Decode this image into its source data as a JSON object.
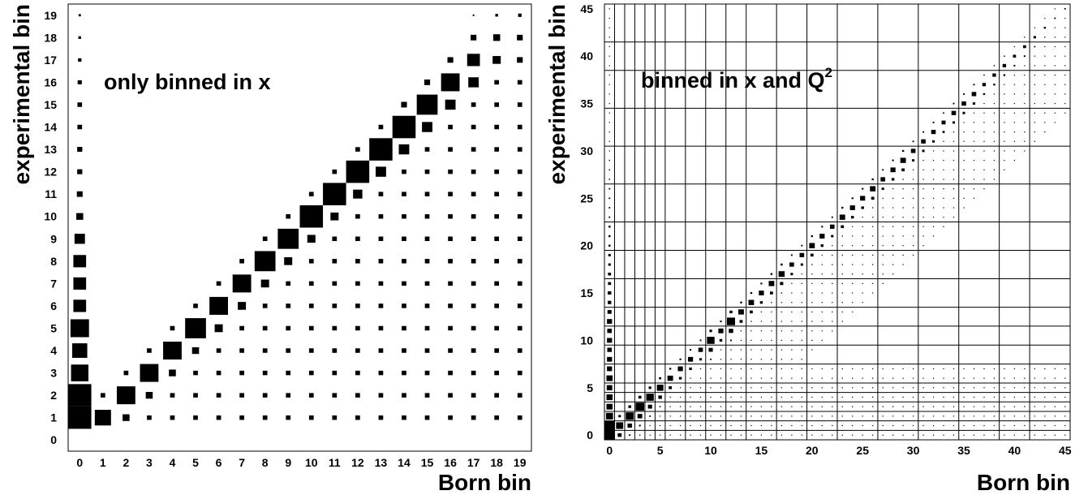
{
  "chart_data": [
    {
      "type": "heatmap",
      "annotation": "only binned in x",
      "xlabel": "Born bin",
      "ylabel": "experimental bin",
      "x_bins": 20,
      "y_bins": 20,
      "xticks": [
        "0",
        "1",
        "2",
        "3",
        "4",
        "5",
        "6",
        "7",
        "8",
        "9",
        "10",
        "11",
        "12",
        "13",
        "14",
        "15",
        "16",
        "17",
        "18",
        "19"
      ],
      "yticks": [
        "0",
        "1",
        "2",
        "3",
        "4",
        "5",
        "6",
        "7",
        "8",
        "9",
        "10",
        "11",
        "12",
        "13",
        "14",
        "15",
        "16",
        "17",
        "18",
        "19"
      ],
      "cells_note": "[born_bin, exp_bin, relative_weight 0-1] (weight = box side fraction)",
      "cells": [
        [
          0,
          1,
          1.0
        ],
        [
          0,
          2,
          1.0
        ],
        [
          0,
          3,
          0.75
        ],
        [
          0,
          4,
          0.65
        ],
        [
          0,
          5,
          0.8
        ],
        [
          0,
          6,
          0.55
        ],
        [
          0,
          7,
          0.55
        ],
        [
          0,
          8,
          0.55
        ],
        [
          0,
          9,
          0.45
        ],
        [
          0,
          10,
          0.3
        ],
        [
          0,
          11,
          0.25
        ],
        [
          0,
          12,
          0.22
        ],
        [
          0,
          13,
          0.22
        ],
        [
          0,
          14,
          0.2
        ],
        [
          0,
          15,
          0.2
        ],
        [
          0,
          16,
          0.18
        ],
        [
          0,
          17,
          0.15
        ],
        [
          0,
          18,
          0.12
        ],
        [
          0,
          19,
          0.1
        ],
        [
          1,
          1,
          0.7
        ],
        [
          1,
          2,
          0.2
        ],
        [
          2,
          1,
          0.3
        ],
        [
          2,
          2,
          0.8
        ],
        [
          2,
          3,
          0.2
        ],
        [
          3,
          1,
          0.2
        ],
        [
          3,
          2,
          0.3
        ],
        [
          3,
          3,
          0.8
        ],
        [
          3,
          4,
          0.2
        ],
        [
          4,
          1,
          0.2
        ],
        [
          4,
          2,
          0.2
        ],
        [
          4,
          3,
          0.3
        ],
        [
          4,
          4,
          0.8
        ],
        [
          4,
          5,
          0.2
        ],
        [
          5,
          1,
          0.2
        ],
        [
          5,
          2,
          0.2
        ],
        [
          5,
          3,
          0.2
        ],
        [
          5,
          4,
          0.3
        ],
        [
          5,
          5,
          0.9
        ],
        [
          5,
          6,
          0.2
        ],
        [
          6,
          1,
          0.2
        ],
        [
          6,
          2,
          0.2
        ],
        [
          6,
          3,
          0.2
        ],
        [
          6,
          4,
          0.2
        ],
        [
          6,
          5,
          0.35
        ],
        [
          6,
          6,
          0.8
        ],
        [
          6,
          7,
          0.2
        ],
        [
          7,
          1,
          0.2
        ],
        [
          7,
          2,
          0.2
        ],
        [
          7,
          3,
          0.2
        ],
        [
          7,
          4,
          0.2
        ],
        [
          7,
          5,
          0.2
        ],
        [
          7,
          6,
          0.35
        ],
        [
          7,
          7,
          0.8
        ],
        [
          7,
          8,
          0.2
        ],
        [
          8,
          1,
          0.2
        ],
        [
          8,
          2,
          0.2
        ],
        [
          8,
          3,
          0.2
        ],
        [
          8,
          4,
          0.2
        ],
        [
          8,
          5,
          0.2
        ],
        [
          8,
          6,
          0.2
        ],
        [
          8,
          7,
          0.35
        ],
        [
          8,
          8,
          0.9
        ],
        [
          8,
          9,
          0.2
        ],
        [
          9,
          1,
          0.2
        ],
        [
          9,
          2,
          0.2
        ],
        [
          9,
          3,
          0.2
        ],
        [
          9,
          4,
          0.2
        ],
        [
          9,
          5,
          0.2
        ],
        [
          9,
          6,
          0.2
        ],
        [
          9,
          7,
          0.2
        ],
        [
          9,
          8,
          0.35
        ],
        [
          9,
          9,
          0.9
        ],
        [
          9,
          10,
          0.2
        ],
        [
          10,
          1,
          0.2
        ],
        [
          10,
          2,
          0.2
        ],
        [
          10,
          3,
          0.2
        ],
        [
          10,
          4,
          0.2
        ],
        [
          10,
          5,
          0.2
        ],
        [
          10,
          6,
          0.2
        ],
        [
          10,
          7,
          0.2
        ],
        [
          10,
          8,
          0.2
        ],
        [
          10,
          9,
          0.35
        ],
        [
          10,
          10,
          1.0
        ],
        [
          10,
          11,
          0.2
        ],
        [
          11,
          1,
          0.2
        ],
        [
          11,
          2,
          0.2
        ],
        [
          11,
          3,
          0.2
        ],
        [
          11,
          4,
          0.2
        ],
        [
          11,
          5,
          0.2
        ],
        [
          11,
          6,
          0.2
        ],
        [
          11,
          7,
          0.2
        ],
        [
          11,
          8,
          0.2
        ],
        [
          11,
          9,
          0.2
        ],
        [
          11,
          10,
          0.35
        ],
        [
          11,
          11,
          1.0
        ],
        [
          11,
          12,
          0.2
        ],
        [
          12,
          1,
          0.2
        ],
        [
          12,
          2,
          0.2
        ],
        [
          12,
          3,
          0.2
        ],
        [
          12,
          4,
          0.2
        ],
        [
          12,
          5,
          0.2
        ],
        [
          12,
          6,
          0.2
        ],
        [
          12,
          7,
          0.2
        ],
        [
          12,
          8,
          0.2
        ],
        [
          12,
          9,
          0.2
        ],
        [
          12,
          10,
          0.2
        ],
        [
          12,
          11,
          0.4
        ],
        [
          12,
          12,
          1.0
        ],
        [
          12,
          13,
          0.2
        ],
        [
          13,
          1,
          0.2
        ],
        [
          13,
          2,
          0.2
        ],
        [
          13,
          3,
          0.2
        ],
        [
          13,
          4,
          0.2
        ],
        [
          13,
          5,
          0.2
        ],
        [
          13,
          6,
          0.2
        ],
        [
          13,
          7,
          0.2
        ],
        [
          13,
          8,
          0.2
        ],
        [
          13,
          9,
          0.2
        ],
        [
          13,
          10,
          0.2
        ],
        [
          13,
          11,
          0.2
        ],
        [
          13,
          12,
          0.45
        ],
        [
          13,
          13,
          1.0
        ],
        [
          13,
          14,
          0.2
        ],
        [
          14,
          1,
          0.2
        ],
        [
          14,
          2,
          0.2
        ],
        [
          14,
          3,
          0.2
        ],
        [
          14,
          4,
          0.2
        ],
        [
          14,
          5,
          0.2
        ],
        [
          14,
          6,
          0.2
        ],
        [
          14,
          7,
          0.2
        ],
        [
          14,
          8,
          0.2
        ],
        [
          14,
          9,
          0.2
        ],
        [
          14,
          10,
          0.2
        ],
        [
          14,
          11,
          0.2
        ],
        [
          14,
          12,
          0.2
        ],
        [
          14,
          13,
          0.45
        ],
        [
          14,
          14,
          1.0
        ],
        [
          14,
          15,
          0.25
        ],
        [
          15,
          1,
          0.2
        ],
        [
          15,
          2,
          0.2
        ],
        [
          15,
          3,
          0.2
        ],
        [
          15,
          4,
          0.2
        ],
        [
          15,
          5,
          0.2
        ],
        [
          15,
          6,
          0.2
        ],
        [
          15,
          7,
          0.2
        ],
        [
          15,
          8,
          0.2
        ],
        [
          15,
          9,
          0.2
        ],
        [
          15,
          10,
          0.2
        ],
        [
          15,
          11,
          0.2
        ],
        [
          15,
          12,
          0.2
        ],
        [
          15,
          13,
          0.2
        ],
        [
          15,
          14,
          0.45
        ],
        [
          15,
          15,
          0.9
        ],
        [
          15,
          16,
          0.25
        ],
        [
          16,
          1,
          0.2
        ],
        [
          16,
          2,
          0.2
        ],
        [
          16,
          3,
          0.2
        ],
        [
          16,
          4,
          0.2
        ],
        [
          16,
          5,
          0.2
        ],
        [
          16,
          6,
          0.2
        ],
        [
          16,
          7,
          0.2
        ],
        [
          16,
          8,
          0.2
        ],
        [
          16,
          9,
          0.2
        ],
        [
          16,
          10,
          0.2
        ],
        [
          16,
          11,
          0.2
        ],
        [
          16,
          12,
          0.2
        ],
        [
          16,
          13,
          0.2
        ],
        [
          16,
          14,
          0.2
        ],
        [
          16,
          15,
          0.45
        ],
        [
          16,
          16,
          0.8
        ],
        [
          16,
          17,
          0.25
        ],
        [
          17,
          1,
          0.2
        ],
        [
          17,
          2,
          0.2
        ],
        [
          17,
          3,
          0.2
        ],
        [
          17,
          4,
          0.2
        ],
        [
          17,
          5,
          0.2
        ],
        [
          17,
          6,
          0.2
        ],
        [
          17,
          7,
          0.2
        ],
        [
          17,
          8,
          0.2
        ],
        [
          17,
          9,
          0.2
        ],
        [
          17,
          10,
          0.2
        ],
        [
          17,
          11,
          0.2
        ],
        [
          17,
          12,
          0.2
        ],
        [
          17,
          13,
          0.2
        ],
        [
          17,
          14,
          0.2
        ],
        [
          17,
          15,
          0.2
        ],
        [
          17,
          16,
          0.45
        ],
        [
          17,
          17,
          0.55
        ],
        [
          17,
          18,
          0.25
        ],
        [
          17,
          19,
          0.05
        ],
        [
          18,
          1,
          0.2
        ],
        [
          18,
          2,
          0.2
        ],
        [
          18,
          3,
          0.2
        ],
        [
          18,
          4,
          0.2
        ],
        [
          18,
          5,
          0.2
        ],
        [
          18,
          6,
          0.2
        ],
        [
          18,
          7,
          0.2
        ],
        [
          18,
          8,
          0.2
        ],
        [
          18,
          9,
          0.2
        ],
        [
          18,
          10,
          0.2
        ],
        [
          18,
          11,
          0.2
        ],
        [
          18,
          12,
          0.2
        ],
        [
          18,
          13,
          0.2
        ],
        [
          18,
          14,
          0.2
        ],
        [
          18,
          15,
          0.2
        ],
        [
          18,
          16,
          0.2
        ],
        [
          18,
          17,
          0.35
        ],
        [
          18,
          18,
          0.3
        ],
        [
          18,
          19,
          0.12
        ],
        [
          19,
          1,
          0.2
        ],
        [
          19,
          2,
          0.2
        ],
        [
          19,
          3,
          0.2
        ],
        [
          19,
          4,
          0.2
        ],
        [
          19,
          5,
          0.2
        ],
        [
          19,
          6,
          0.2
        ],
        [
          19,
          7,
          0.2
        ],
        [
          19,
          8,
          0.2
        ],
        [
          19,
          9,
          0.2
        ],
        [
          19,
          10,
          0.2
        ],
        [
          19,
          11,
          0.2
        ],
        [
          19,
          12,
          0.2
        ],
        [
          19,
          13,
          0.2
        ],
        [
          19,
          14,
          0.2
        ],
        [
          19,
          15,
          0.2
        ],
        [
          19,
          16,
          0.2
        ],
        [
          19,
          17,
          0.25
        ],
        [
          19,
          18,
          0.25
        ],
        [
          19,
          19,
          0.15
        ]
      ]
    },
    {
      "type": "heatmap",
      "annotation": "binned in x and Q",
      "annotation_sup": "2",
      "xlabel": "Born bin",
      "ylabel": "experimental bin",
      "x_bins": 46,
      "y_bins": 46,
      "xticks": [
        0,
        5,
        10,
        15,
        20,
        25,
        30,
        35,
        40,
        45
      ],
      "yticks": [
        0,
        5,
        10,
        15,
        20,
        25,
        30,
        35,
        40,
        45
      ],
      "grid_boundaries": [
        1,
        2,
        3,
        4,
        5,
        6,
        8,
        10,
        12,
        14,
        17,
        20,
        23,
        27,
        31,
        35,
        39,
        42
      ],
      "diagonal_weights_note": "[born_bin, exp_bin, relative_weight 0-1]",
      "column0_weights": [
        1.0,
        1.0,
        0.7,
        0.6,
        0.6,
        0.55,
        0.6,
        0.5,
        0.5,
        0.45,
        0.5,
        0.45,
        0.5,
        0.4,
        0.35,
        0.35,
        0.3,
        0.3,
        0.25,
        0.25,
        0.2,
        0.2,
        0.2,
        0.15,
        0.15,
        0.15,
        0.15,
        0.12,
        0.12,
        0.12,
        0.1,
        0.1,
        0.1,
        0.08,
        0.08,
        0.08,
        0.08,
        0.06,
        0.06,
        0.06,
        0.05,
        0.05,
        0.05,
        0.04,
        0.04,
        0.04
      ],
      "diagonal_weights": [
        0,
        0.7,
        0.8,
        0.85,
        0.75,
        0.65,
        0.55,
        0.5,
        0.5,
        0.45,
        0.75,
        0.5,
        0.8,
        0.55,
        0.55,
        0.5,
        0.55,
        0.6,
        0.45,
        0.45,
        0.55,
        0.5,
        0.45,
        0.55,
        0.5,
        0.5,
        0.55,
        0.45,
        0.5,
        0.55,
        0.45,
        0.45,
        0.45,
        0.4,
        0.45,
        0.45,
        0.45,
        0.35,
        0.35,
        0.35,
        0.3,
        0.3,
        0.25,
        0.2,
        0.15,
        0.15
      ]
    }
  ]
}
